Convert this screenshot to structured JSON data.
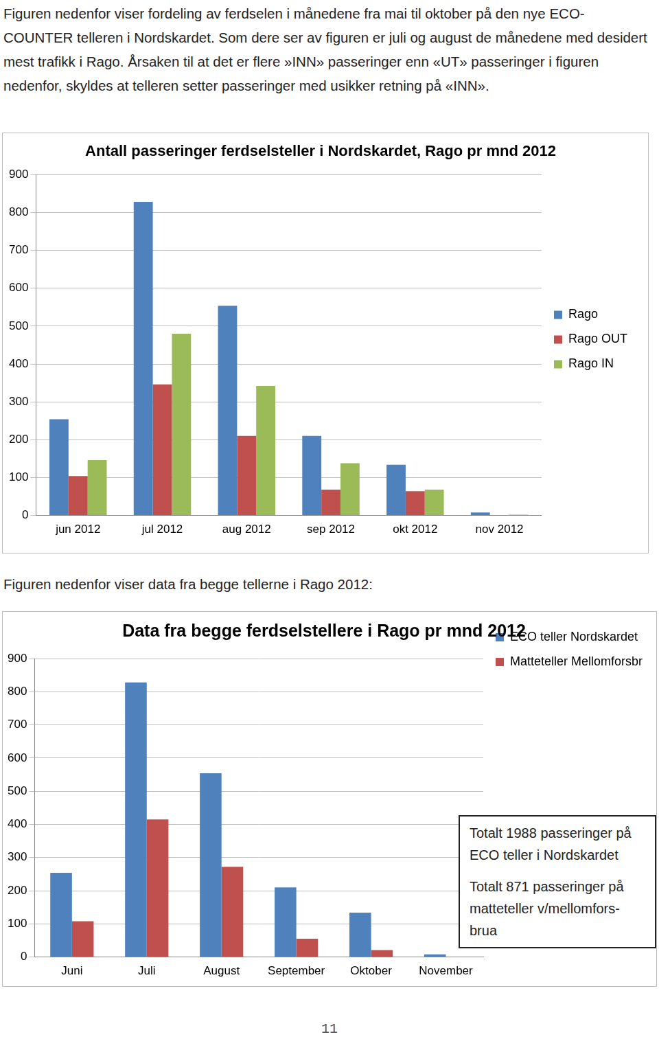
{
  "paragraph_1": "Figuren nedenfor viser fordeling av ferdselen i månedene fra mai til oktober på den nye ECO-COUNTER telleren i Nordskardet. Som dere ser av figuren er juli og august de månedene med desidert mest trafikk i Rago. Årsaken til at det er flere »INN» passeringer enn «UT» passeringer i figuren nedenfor, skyldes at telleren setter passeringer med usikker retning på «INN».",
  "chart_data": [
    {
      "type": "bar",
      "title": "Antall passeringer ferdselsteller i Nordskardet, Rago pr mnd 2012",
      "categories": [
        "jun 2012",
        "jul 2012",
        "aug 2012",
        "sep 2012",
        "okt 2012",
        "nov 2012"
      ],
      "series": [
        {
          "name": "Rago",
          "color": "#4f81bd",
          "values": [
            254,
            828,
            554,
            210,
            134,
            8
          ]
        },
        {
          "name": "Rago OUT",
          "color": "#c0504d",
          "values": [
            104,
            346,
            210,
            68,
            64,
            0
          ]
        },
        {
          "name": "Rago IN",
          "color": "#9bbb59",
          "values": [
            146,
            480,
            342,
            138,
            68,
            2
          ]
        }
      ],
      "ylim": [
        0,
        900
      ],
      "yticks": [
        0,
        100,
        200,
        300,
        400,
        500,
        600,
        700,
        800,
        900
      ],
      "grid": true,
      "legend": "right"
    },
    {
      "type": "bar",
      "title": "Data fra begge ferdselstellere i Rago pr mnd 2012",
      "categories": [
        "Juni",
        "Juli",
        "August",
        "September",
        "Oktober",
        "November"
      ],
      "series": [
        {
          "name": "ECO teller Nordskardet",
          "color": "#4f81bd",
          "values": [
            254,
            828,
            554,
            210,
            134,
            8
          ]
        },
        {
          "name": "Matteteller Mellomforsbrua",
          "color": "#c0504d",
          "values": [
            108,
            415,
            272,
            55,
            21,
            0
          ]
        }
      ],
      "ylim": [
        0,
        900
      ],
      "yticks": [
        0,
        100,
        200,
        300,
        400,
        500,
        600,
        700,
        800,
        900
      ],
      "grid": true,
      "legend": "right",
      "annotations": [
        [
          "Totalt 1988 passeringer på",
          "ECO teller i Nordskardet"
        ],
        [
          "Totalt 871 passeringer  på",
          "matteteller v/mellomfors-",
          "brua"
        ]
      ]
    }
  ],
  "paragraph_2": "Figuren nedenfor viser data fra begge tellerne i Rago 2012:",
  "page_number": 11
}
